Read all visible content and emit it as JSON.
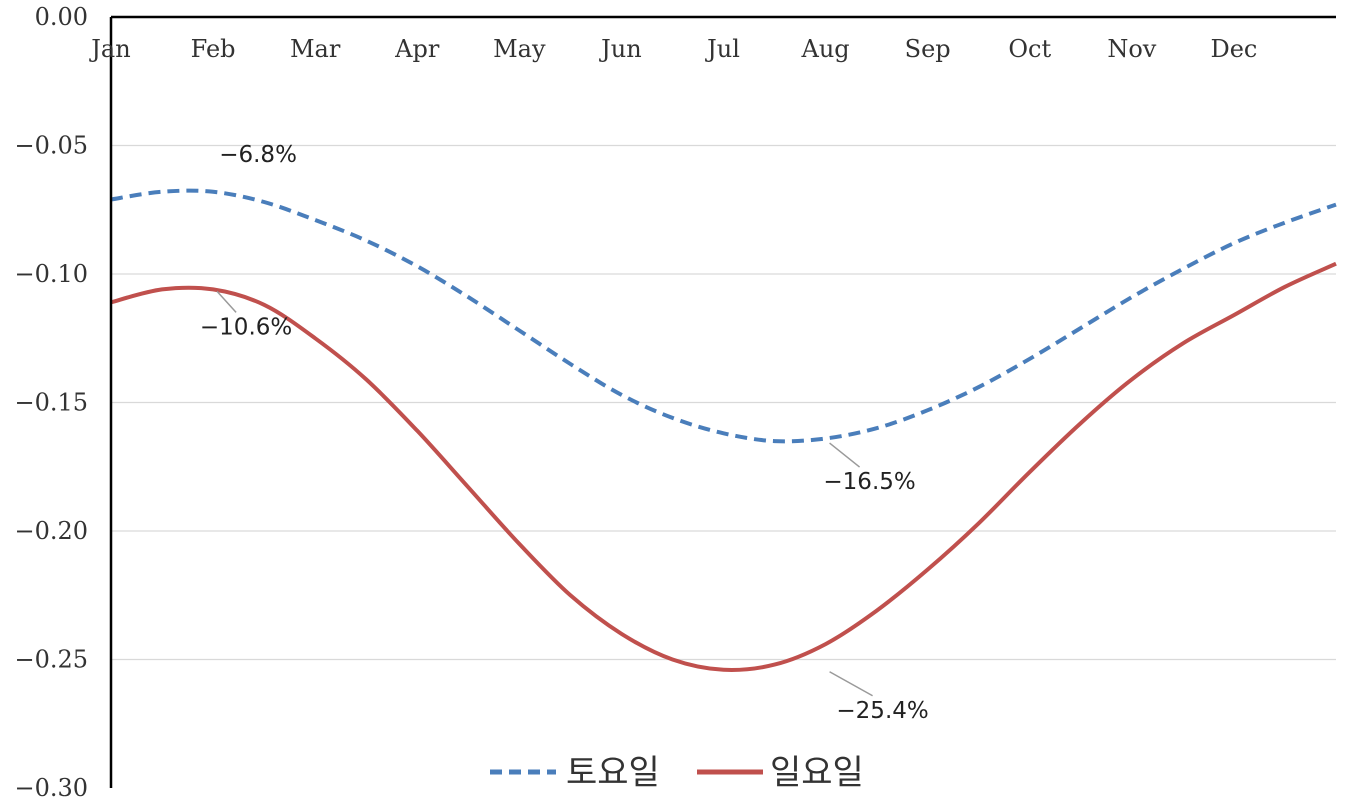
{
  "chart_data": {
    "type": "line",
    "title": "",
    "xlabel": "",
    "ylabel": "",
    "x_tick_labels": [
      "Jan",
      "Feb",
      "Mar",
      "Apr",
      "May",
      "Jun",
      "Jul",
      "Aug",
      "Sep",
      "Oct",
      "Nov",
      "Dec"
    ],
    "y_tick_labels": [
      "0.00",
      "-0.05",
      "-0.10",
      "-0.15",
      "-0.20",
      "-0.25",
      "-0.30"
    ],
    "ylim": [
      -0.3,
      0.0
    ],
    "xlim": [
      0,
      12
    ],
    "grid": "horizontal",
    "legend_position": "bottom",
    "series": [
      {
        "name": "토요일",
        "color": "#4a7ebb",
        "style": "dashed",
        "x": [
          0,
          0.5,
          1,
          1.5,
          2,
          2.5,
          3,
          3.5,
          4,
          4.5,
          5,
          5.5,
          6,
          6.5,
          7,
          7.5,
          8,
          8.5,
          9,
          9.5,
          10,
          10.5,
          11,
          11.5,
          12
        ],
        "values": [
          -0.071,
          -0.068,
          -0.068,
          -0.072,
          -0.079,
          -0.087,
          -0.097,
          -0.109,
          -0.122,
          -0.135,
          -0.147,
          -0.156,
          -0.162,
          -0.165,
          -0.164,
          -0.16,
          -0.153,
          -0.144,
          -0.133,
          -0.121,
          -0.109,
          -0.098,
          -0.088,
          -0.08,
          -0.073
        ]
      },
      {
        "name": "일요일",
        "color": "#c0504d",
        "style": "solid",
        "x": [
          0,
          0.5,
          1,
          1.5,
          2,
          2.5,
          3,
          3.5,
          4,
          4.5,
          5,
          5.5,
          6,
          6.5,
          7,
          7.5,
          8,
          8.5,
          9,
          9.5,
          10,
          10.5,
          11,
          11.5,
          12
        ],
        "values": [
          -0.111,
          -0.106,
          -0.106,
          -0.112,
          -0.125,
          -0.141,
          -0.161,
          -0.183,
          -0.205,
          -0.225,
          -0.24,
          -0.25,
          -0.254,
          -0.252,
          -0.244,
          -0.231,
          -0.215,
          -0.197,
          -0.177,
          -0.158,
          -0.141,
          -0.127,
          -0.116,
          -0.105,
          -0.096
        ]
      }
    ],
    "annotations": [
      {
        "text": "-6.8%",
        "x": 1.0,
        "y": -0.068,
        "series": 0
      },
      {
        "text": "-10.6%",
        "x": 1.0,
        "y": -0.106,
        "series": 1
      },
      {
        "text": "-16.5%",
        "x": 7.0,
        "y": -0.165,
        "series": 0
      },
      {
        "text": "-25.4%",
        "x": 7.0,
        "y": -0.254,
        "series": 1
      }
    ]
  }
}
